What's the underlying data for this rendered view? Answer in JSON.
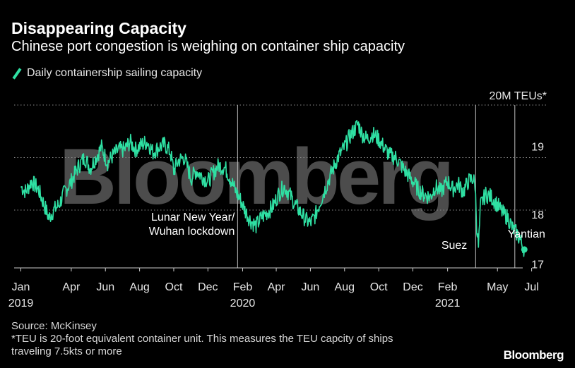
{
  "title": "Disappearing Capacity",
  "subtitle": "Chinese port congestion is weighing on container ship capacity",
  "legend_label": "Daily containership sailing capacity",
  "watermark": "Bloomberg",
  "footer": {
    "source": "Source: McKinsey",
    "note1": "*TEU is 20-foot equivalent container unit. This measures the TEU capcity of ships",
    "note2": "traveling 7.5kts or more",
    "brand": "Bloomberg"
  },
  "colors": {
    "series": "#2fe0a3",
    "background": "#000000",
    "grid": "#8c8c8c",
    "event_line": "#bfbfbf"
  },
  "chart_data": {
    "type": "line",
    "title": "Disappearing Capacity",
    "subtitle": "Chinese port congestion is weighing on container ship capacity",
    "ylabel": "",
    "y_unit_label": "20M TEUs*",
    "ylim": [
      16.9,
      20.0
    ],
    "y_ticks": [
      17,
      18,
      19
    ],
    "y_gridlines": [
      18,
      19,
      20
    ],
    "x_range": [
      "2018-12-20",
      "2021-07-28"
    ],
    "x_ticks": [
      {
        "date": "2019-01-01",
        "label": "Jan",
        "year": "2019"
      },
      {
        "date": "2019-04-01",
        "label": "Apr",
        "year": ""
      },
      {
        "date": "2019-06-01",
        "label": "Jun",
        "year": ""
      },
      {
        "date": "2019-08-01",
        "label": "Aug",
        "year": ""
      },
      {
        "date": "2019-10-01",
        "label": "Oct",
        "year": ""
      },
      {
        "date": "2019-12-01",
        "label": "Dec",
        "year": ""
      },
      {
        "date": "2020-02-01",
        "label": "Feb",
        "year": "2020"
      },
      {
        "date": "2020-04-01",
        "label": "Apr",
        "year": ""
      },
      {
        "date": "2020-06-01",
        "label": "Jun",
        "year": ""
      },
      {
        "date": "2020-08-01",
        "label": "Aug",
        "year": ""
      },
      {
        "date": "2020-10-01",
        "label": "Oct",
        "year": ""
      },
      {
        "date": "2020-12-01",
        "label": "Dec",
        "year": ""
      },
      {
        "date": "2021-02-01",
        "label": "Feb",
        "year": "2021"
      },
      {
        "date": "2021-05-01",
        "label": "May",
        "year": ""
      },
      {
        "date": "2021-07-01",
        "label": "Jul",
        "year": ""
      }
    ],
    "grid": true,
    "legend_position": "top-left",
    "series": [
      {
        "name": "Daily containership sailing capacity",
        "points": [
          [
            "2019-01-01",
            18.45
          ],
          [
            "2019-01-10",
            18.35
          ],
          [
            "2019-01-20",
            18.55
          ],
          [
            "2019-02-01",
            18.4
          ],
          [
            "2019-02-10",
            18.15
          ],
          [
            "2019-02-20",
            17.85
          ],
          [
            "2019-03-01",
            18.0
          ],
          [
            "2019-03-10",
            18.1
          ],
          [
            "2019-03-20",
            18.35
          ],
          [
            "2019-04-01",
            18.55
          ],
          [
            "2019-04-15",
            18.85
          ],
          [
            "2019-04-25",
            19.0
          ],
          [
            "2019-05-05",
            18.8
          ],
          [
            "2019-05-15",
            19.0
          ],
          [
            "2019-05-25",
            19.2
          ],
          [
            "2019-06-05",
            18.9
          ],
          [
            "2019-06-15",
            19.05
          ],
          [
            "2019-06-25",
            19.15
          ],
          [
            "2019-07-05",
            19.15
          ],
          [
            "2019-07-15",
            19.3
          ],
          [
            "2019-07-25",
            19.15
          ],
          [
            "2019-08-05",
            19.25
          ],
          [
            "2019-08-15",
            19.3
          ],
          [
            "2019-08-25",
            19.1
          ],
          [
            "2019-09-05",
            19.2
          ],
          [
            "2019-09-15",
            19.25
          ],
          [
            "2019-09-25",
            19.1
          ],
          [
            "2019-10-01",
            18.75
          ],
          [
            "2019-10-10",
            18.95
          ],
          [
            "2019-10-20",
            19.0
          ],
          [
            "2019-11-01",
            18.6
          ],
          [
            "2019-11-10",
            18.75
          ],
          [
            "2019-11-20",
            18.65
          ],
          [
            "2019-12-01",
            18.55
          ],
          [
            "2019-12-10",
            18.7
          ],
          [
            "2019-12-20",
            18.85
          ],
          [
            "2020-01-01",
            18.8
          ],
          [
            "2020-01-10",
            18.6
          ],
          [
            "2020-01-20",
            18.35
          ],
          [
            "2020-01-28",
            18.2
          ],
          [
            "2020-02-05",
            18.0
          ],
          [
            "2020-02-15",
            17.8
          ],
          [
            "2020-02-25",
            17.7
          ],
          [
            "2020-03-05",
            17.85
          ],
          [
            "2020-03-15",
            17.95
          ],
          [
            "2020-03-25",
            18.05
          ],
          [
            "2020-04-05",
            18.3
          ],
          [
            "2020-04-15",
            18.45
          ],
          [
            "2020-04-25",
            18.3
          ],
          [
            "2020-05-05",
            18.1
          ],
          [
            "2020-05-15",
            17.95
          ],
          [
            "2020-05-25",
            17.8
          ],
          [
            "2020-06-01",
            17.75
          ],
          [
            "2020-06-10",
            17.9
          ],
          [
            "2020-06-20",
            18.2
          ],
          [
            "2020-07-01",
            18.5
          ],
          [
            "2020-07-10",
            18.75
          ],
          [
            "2020-07-20",
            19.0
          ],
          [
            "2020-08-01",
            19.2
          ],
          [
            "2020-08-10",
            19.4
          ],
          [
            "2020-08-20",
            19.55
          ],
          [
            "2020-08-25",
            19.65
          ],
          [
            "2020-09-01",
            19.45
          ],
          [
            "2020-09-10",
            19.35
          ],
          [
            "2020-09-20",
            19.45
          ],
          [
            "2020-10-01",
            19.35
          ],
          [
            "2020-10-10",
            19.2
          ],
          [
            "2020-10-20",
            19.05
          ],
          [
            "2020-11-01",
            19.0
          ],
          [
            "2020-11-10",
            18.85
          ],
          [
            "2020-11-20",
            18.7
          ],
          [
            "2020-12-01",
            18.55
          ],
          [
            "2020-12-10",
            18.4
          ],
          [
            "2020-12-20",
            18.3
          ],
          [
            "2021-01-01",
            18.25
          ],
          [
            "2021-01-10",
            18.45
          ],
          [
            "2021-01-20",
            18.35
          ],
          [
            "2021-02-01",
            18.55
          ],
          [
            "2021-02-10",
            18.4
          ],
          [
            "2021-02-20",
            18.5
          ],
          [
            "2021-03-01",
            18.35
          ],
          [
            "2021-03-10",
            18.55
          ],
          [
            "2021-03-18",
            18.6
          ],
          [
            "2021-03-22",
            18.5
          ],
          [
            "2021-03-25",
            17.7
          ],
          [
            "2021-03-28",
            17.3
          ],
          [
            "2021-04-01",
            18.1
          ],
          [
            "2021-04-10",
            18.3
          ],
          [
            "2021-04-20",
            18.25
          ],
          [
            "2021-05-01",
            18.1
          ],
          [
            "2021-05-10",
            17.95
          ],
          [
            "2021-05-20",
            17.85
          ],
          [
            "2021-05-28",
            17.65
          ],
          [
            "2021-06-05",
            17.55
          ],
          [
            "2021-06-12",
            17.4
          ],
          [
            "2021-06-18",
            17.25
          ]
        ]
      }
    ],
    "end_marker": {
      "date": "2021-06-18",
      "value": 17.25
    },
    "events": [
      {
        "date": "2020-01-23",
        "label_lines": [
          "Lunar New Year/",
          "Wuhan lockdown"
        ]
      },
      {
        "date": "2021-03-23",
        "label_lines": [
          "Suez"
        ]
      },
      {
        "date": "2021-06-01",
        "label_lines": [
          "Yantian"
        ]
      }
    ]
  }
}
